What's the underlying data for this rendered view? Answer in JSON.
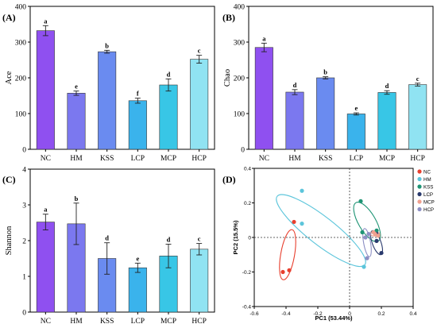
{
  "chart_data": [
    {
      "type": "bar",
      "panel_label": "(A)",
      "ylabel": "Ace",
      "categories": [
        "NC",
        "HM",
        "KSS",
        "LCP",
        "MCP",
        "HCP"
      ],
      "values": [
        332,
        157,
        273,
        136,
        180,
        252
      ],
      "errors": [
        14,
        6,
        4,
        7,
        17,
        11
      ],
      "letters": [
        "a",
        "e",
        "b",
        "f",
        "d",
        "c"
      ],
      "ylim": [
        0,
        400
      ],
      "yticks": [
        "0",
        "100",
        "200",
        "300",
        "400"
      ],
      "colors": [
        "#8f50f0",
        "#7b78ef",
        "#6a8bf0",
        "#3ab3ec",
        "#38c6e6",
        "#90e3f2"
      ]
    },
    {
      "type": "bar",
      "panel_label": "(B)",
      "ylabel": "Chao",
      "categories": [
        "NC",
        "HM",
        "KSS",
        "LCP",
        "MCP",
        "HCP"
      ],
      "values": [
        285,
        160,
        200,
        99,
        159,
        181
      ],
      "errors": [
        12,
        7,
        3,
        3,
        5,
        4
      ],
      "letters": [
        "a",
        "d",
        "b",
        "e",
        "d",
        "c"
      ],
      "ylim": [
        0,
        400
      ],
      "yticks": [
        "0",
        "100",
        "200",
        "300",
        "400"
      ],
      "colors": [
        "#8f50f0",
        "#7b78ef",
        "#6a8bf0",
        "#3ab3ec",
        "#38c6e6",
        "#90e3f2"
      ]
    },
    {
      "type": "bar",
      "panel_label": "(C)",
      "ylabel": "Shannon",
      "categories": [
        "NC",
        "HM",
        "KSS",
        "LCP",
        "MCP",
        "HCP"
      ],
      "values": [
        2.52,
        2.47,
        1.5,
        1.24,
        1.57,
        1.76
      ],
      "errors": [
        0.22,
        0.58,
        0.44,
        0.13,
        0.33,
        0.16
      ],
      "letters": [
        "a",
        "b",
        "d",
        "e",
        "d",
        "c"
      ],
      "ylim": [
        0,
        4
      ],
      "yticks": [
        "0",
        "1",
        "2",
        "3",
        "4"
      ],
      "colors": [
        "#8f50f0",
        "#7b78ef",
        "#6a8bf0",
        "#3ab3ec",
        "#38c6e6",
        "#90e3f2"
      ]
    },
    {
      "type": "scatter",
      "panel_label": "(D)",
      "xlabel": "PC1 (53.44%)",
      "ylabel": "PC2 (15.5%)",
      "xlim": [
        -0.6,
        0.4
      ],
      "ylim": [
        -0.4,
        0.4
      ],
      "xticks": [
        "-0.6",
        "-0.4",
        "-0.2",
        "0",
        "0.2",
        "0.4"
      ],
      "yticks": [
        "-0.4",
        "-0.2",
        "0",
        "0.2",
        "0.4"
      ],
      "legend_position": "right",
      "series": [
        {
          "name": "NC",
          "color": "#e8402f",
          "points": [
            [
              -0.42,
              -0.2
            ],
            [
              -0.38,
              -0.19
            ],
            [
              -0.35,
              0.09
            ]
          ]
        },
        {
          "name": "HM",
          "color": "#5cc5db",
          "points": [
            [
              -0.3,
              0.27
            ],
            [
              -0.3,
              0.08
            ],
            [
              0.09,
              -0.17
            ]
          ]
        },
        {
          "name": "KSS",
          "color": "#1e9474",
          "points": [
            [
              0.07,
              0.21
            ],
            [
              0.17,
              0.04
            ],
            [
              0.08,
              0.03
            ]
          ]
        },
        {
          "name": "LCP",
          "color": "#2a3a6d",
          "points": [
            [
              0.17,
              0.02
            ],
            [
              0.2,
              -0.09
            ],
            [
              0.17,
              -0.02
            ]
          ]
        },
        {
          "name": "MCP",
          "color": "#f0a08f",
          "points": [
            [
              0.16,
              0.02
            ],
            [
              0.18,
              0.01
            ],
            [
              0.15,
              0.03
            ]
          ]
        },
        {
          "name": "HCP",
          "color": "#8d8fc4",
          "points": [
            [
              0.11,
              -0.12
            ],
            [
              0.1,
              0.0
            ],
            [
              0.12,
              0.02
            ]
          ]
        }
      ],
      "ellipses": [
        {
          "group": "NC",
          "color": "#e8402f",
          "cx": -0.39,
          "cy": -0.1,
          "rx": 0.16,
          "ry": 0.04,
          "angle_deg": 80
        },
        {
          "group": "HM",
          "color": "#5cc5db",
          "cx": -0.18,
          "cy": 0.04,
          "rx": 0.35,
          "ry": 0.08,
          "angle_deg": -38
        },
        {
          "group": "KSS",
          "color": "#1e9474",
          "cx": 0.11,
          "cy": 0.09,
          "rx": 0.14,
          "ry": 0.05,
          "angle_deg": -60
        },
        {
          "group": "LCP",
          "color": "#2a3a6d",
          "cx": 0.17,
          "cy": -0.03,
          "rx": 0.08,
          "ry": 0.025,
          "angle_deg": -70
        },
        {
          "group": "MCP",
          "color": "#f0a08f",
          "cx": 0.16,
          "cy": 0.02,
          "rx": 0.03,
          "ry": 0.012,
          "angle_deg": 0
        },
        {
          "group": "HCP",
          "color": "#8d8fc4",
          "cx": 0.11,
          "cy": -0.03,
          "rx": 0.09,
          "ry": 0.02,
          "angle_deg": -80
        }
      ]
    }
  ]
}
